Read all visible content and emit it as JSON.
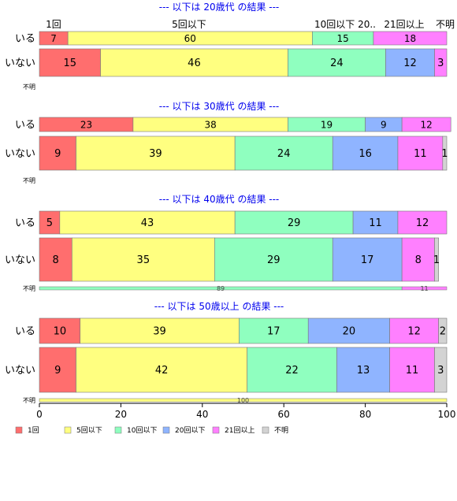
{
  "chart_data": {
    "type": "bar",
    "orientation": "horizontal",
    "stacked": true,
    "xlim": [
      0,
      100
    ],
    "x_ticks": [
      "0",
      "20",
      "40",
      "60",
      "80",
      "100"
    ],
    "series": [
      {
        "name": "1回",
        "color": "#ff6e6e"
      },
      {
        "name": "5回以下",
        "color": "#ffff80"
      },
      {
        "name": "10回以下",
        "color": "#8fffbf"
      },
      {
        "name": "20回以下",
        "color": "#8fb4ff"
      },
      {
        "name": "21回以上",
        "color": "#ff80ff"
      },
      {
        "name": "不明",
        "color": "#d3d3d3"
      }
    ],
    "top_header_labels": [
      {
        "text": "1回",
        "pos": 0
      },
      {
        "text": "5回以下",
        "pos": 1
      },
      {
        "text": "10回以下 20..",
        "pos": 2
      },
      {
        "text": "21回以上",
        "pos": 3
      },
      {
        "text": "不明",
        "pos": 4
      }
    ],
    "panels": [
      {
        "title": "--- 以下は 20歳代 の結果 ---",
        "rows": [
          {
            "label": "いる",
            "values": [
              7,
              60,
              15,
              0,
              18,
              0
            ]
          },
          {
            "label": "いない",
            "values": [
              15,
              46,
              24,
              12,
              3,
              0
            ]
          }
        ],
        "unknown": {
          "label": "不明",
          "values": [
            0,
            0,
            0,
            0,
            0,
            0
          ]
        }
      },
      {
        "title": "--- 以下は 30歳代 の結果 ---",
        "rows": [
          {
            "label": "いる",
            "values": [
              23,
              38,
              19,
              9,
              12,
              0
            ]
          },
          {
            "label": "いない",
            "values": [
              9,
              39,
              24,
              16,
              11,
              1
            ]
          }
        ],
        "unknown": {
          "label": "不明",
          "values": [
            0,
            0,
            0,
            0,
            0,
            0
          ]
        }
      },
      {
        "title": "--- 以下は 40歳代 の結果 ---",
        "rows": [
          {
            "label": "いる",
            "values": [
              5,
              43,
              29,
              11,
              12,
              0
            ]
          },
          {
            "label": "いない",
            "values": [
              8,
              35,
              29,
              17,
              8,
              1
            ]
          }
        ],
        "unknown": {
          "label": "不明",
          "values": [
            0,
            0,
            89,
            0,
            11,
            0
          ]
        }
      },
      {
        "title": "--- 以下は 50歳以上 の結果 ---",
        "rows": [
          {
            "label": "いる",
            "values": [
              10,
              39,
              17,
              20,
              12,
              2
            ]
          },
          {
            "label": "いない",
            "values": [
              9,
              42,
              22,
              13,
              11,
              3
            ]
          }
        ],
        "unknown": {
          "label": "不明",
          "values": [
            0,
            100,
            0,
            0,
            0,
            0
          ]
        }
      }
    ]
  }
}
